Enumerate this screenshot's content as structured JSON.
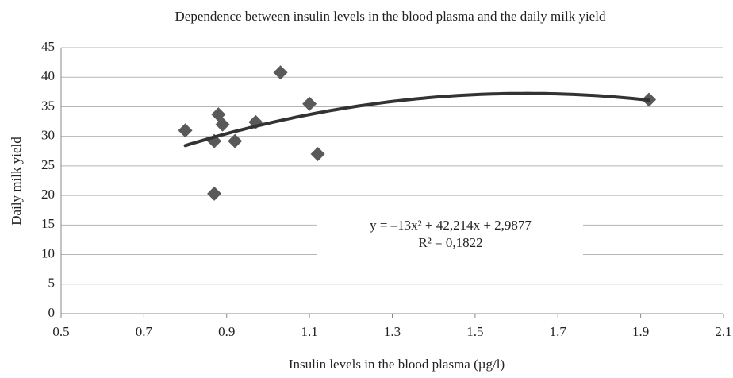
{
  "chart_data": {
    "type": "scatter",
    "title": "Dependence between insulin levels in the blood plasma and the daily milk yield",
    "x_label": "Insulin levels in the blood plasma (µg/l)",
    "y_label": "Daily milk yield",
    "x": [
      0.8,
      0.87,
      0.88,
      0.89,
      0.87,
      0.92,
      0.97,
      1.03,
      1.1,
      1.12,
      1.92
    ],
    "values": [
      31,
      29.2,
      33.7,
      32,
      20.3,
      29.2,
      32.4,
      40.8,
      35.5,
      27,
      36.2
    ],
    "color": "#595959",
    "xlim": [
      0.5,
      2.1
    ],
    "xticks": [
      0.5,
      0.7,
      0.9,
      1.1,
      1.3,
      1.5,
      1.7,
      1.9,
      2.1
    ],
    "ylim": [
      0,
      45
    ],
    "yticks": [
      0,
      5,
      10,
      15,
      20,
      25,
      30,
      35,
      40,
      45
    ],
    "grid": true,
    "trendline": {
      "type": "polynomial",
      "coefficients": [
        -13,
        42.214,
        2.9877
      ],
      "color": "#333333",
      "equation": "y = –13x² + 42,214x + 2,9877",
      "r_squared": "R² = 0,1822"
    }
  }
}
